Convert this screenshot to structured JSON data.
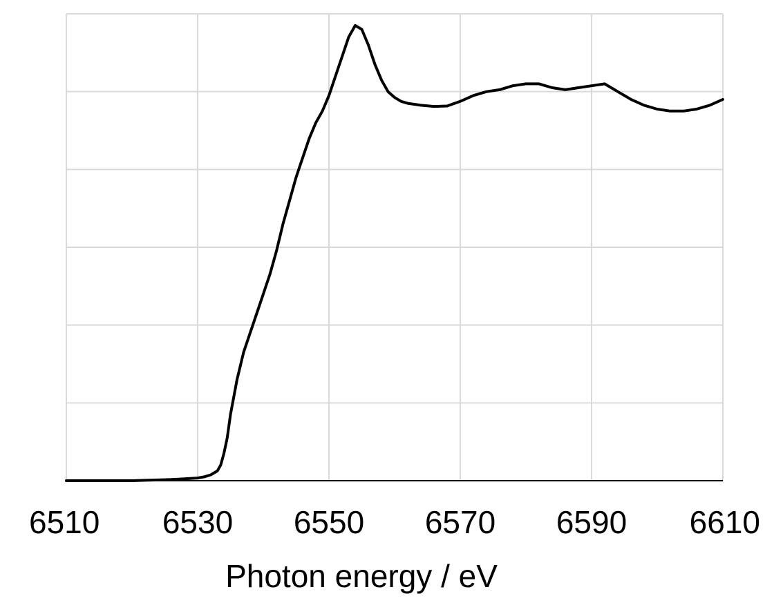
{
  "chart_data": {
    "type": "line",
    "title": "",
    "xlabel": "Photon energy / eV",
    "ylabel": "",
    "xlim": [
      6510,
      6610
    ],
    "ylim": [
      0,
      1.2
    ],
    "x_ticks": [
      6510,
      6530,
      6550,
      6570,
      6590,
      6610
    ],
    "x_tick_labels": [
      "6510",
      "6530",
      "6550",
      "6570",
      "6590",
      "6610"
    ],
    "x_gridlines": [
      6510,
      6530,
      6550,
      6570,
      6590,
      6610
    ],
    "y_gridlines": [
      0,
      0.2,
      0.4,
      0.6,
      0.8,
      1.0,
      1.2
    ],
    "grid": true,
    "legend": "none",
    "colors": {
      "line": "#000000",
      "grid": "#d9d9d9",
      "axis": "#000000"
    },
    "series": [
      {
        "x": [
          6510,
          6512,
          6514,
          6516,
          6518,
          6520,
          6522,
          6524,
          6526,
          6528,
          6530,
          6531,
          6532,
          6533,
          6533.5,
          6534,
          6534.5,
          6535,
          6536,
          6537,
          6538,
          6539,
          6540,
          6541,
          6542,
          6543,
          6544,
          6545,
          6546,
          6547,
          6548,
          6549,
          6550,
          6551,
          6552,
          6553,
          6554,
          6555,
          6556,
          6557,
          6558,
          6559,
          6560,
          6561,
          6562,
          6564,
          6566,
          6568,
          6570,
          6572,
          6574,
          6576,
          6578,
          6580,
          6582,
          6584,
          6586,
          6588,
          6590,
          6592,
          6594,
          6596,
          6598,
          6600,
          6602,
          6604,
          6606,
          6608,
          6610
        ],
        "y": [
          0.0,
          0.0,
          0.0,
          0.0,
          0.0,
          0.0,
          0.001,
          0.002,
          0.003,
          0.005,
          0.007,
          0.01,
          0.015,
          0.025,
          0.04,
          0.07,
          0.11,
          0.17,
          0.26,
          0.33,
          0.38,
          0.43,
          0.48,
          0.53,
          0.59,
          0.66,
          0.72,
          0.78,
          0.83,
          0.88,
          0.92,
          0.95,
          0.99,
          1.04,
          1.09,
          1.14,
          1.17,
          1.16,
          1.12,
          1.07,
          1.03,
          1.0,
          0.985,
          0.975,
          0.97,
          0.965,
          0.962,
          0.963,
          0.975,
          0.99,
          1.0,
          1.005,
          1.015,
          1.02,
          1.02,
          1.01,
          1.005,
          1.01,
          1.015,
          1.02,
          1.0,
          0.98,
          0.965,
          0.955,
          0.95,
          0.95,
          0.955,
          0.965,
          0.98
        ]
      }
    ]
  }
}
